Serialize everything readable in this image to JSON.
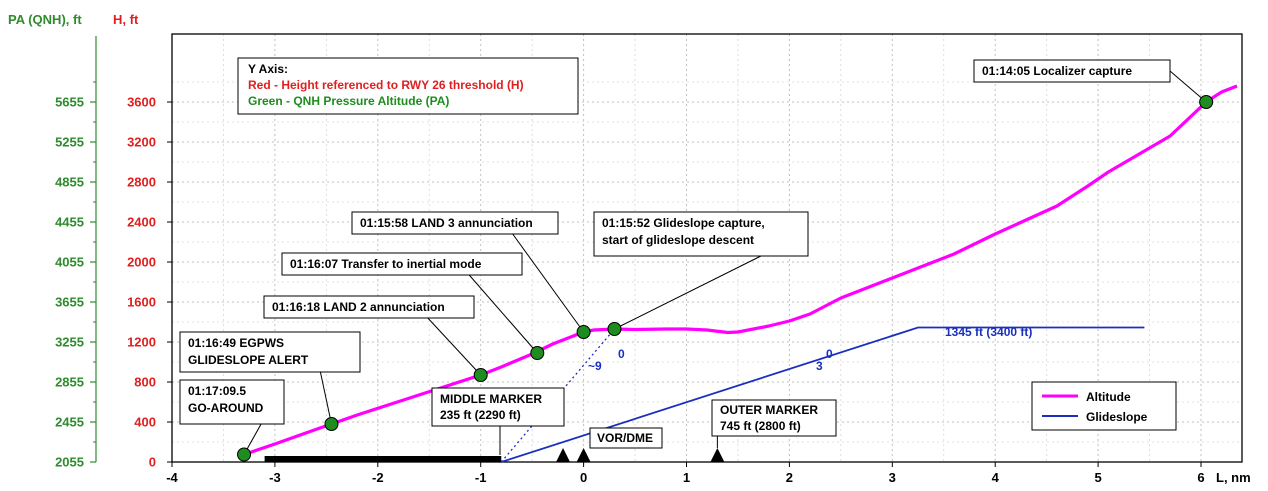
{
  "chart_data": {
    "type": "line",
    "xlabel": "L, nm",
    "ylabel_left_outer": "PA (QNH), ft",
    "ylabel_left_inner": "H, ft",
    "xlim": [
      -4,
      6.5
    ],
    "ylim": [
      0,
      3760
    ],
    "grid": true,
    "legend_position": "bottom-right",
    "x_ticks": [
      "-4",
      "-3",
      "-2",
      "-1",
      "0",
      "1",
      "2",
      "3",
      "4",
      "5",
      "6"
    ],
    "y_ticks_H": [
      "0",
      "400",
      "800",
      "1200",
      "1600",
      "2000",
      "2400",
      "2800",
      "3200",
      "3600"
    ],
    "y_ticks_PA": [
      "2055",
      "2455",
      "2855",
      "3255",
      "3655",
      "4055",
      "4455",
      "4855",
      "5255",
      "5655"
    ],
    "colors": {
      "altitude": "#ff00ff",
      "glideslope": "#1a2fbf",
      "h_axis": "#e02020",
      "pa_axis": "#2e8b2e",
      "marker": "#1e8c1e"
    },
    "series": [
      {
        "name": "Altitude",
        "x": [
          -3.3,
          -3.0,
          -2.7,
          -2.45,
          -2.2,
          -1.9,
          -1.6,
          -1.3,
          -1.0,
          -0.8,
          -0.5,
          -0.3,
          0.0,
          0.1,
          0.3,
          0.5,
          0.8,
          1.0,
          1.2,
          1.4,
          1.5,
          1.8,
          2.0,
          2.2,
          2.5,
          2.8,
          3.0,
          3.3,
          3.6,
          4.0,
          4.3,
          4.6,
          4.9,
          5.1,
          5.4,
          5.7,
          6.05,
          6.2,
          6.35
        ],
        "y": [
          75,
          180,
          290,
          380,
          470,
          570,
          670,
          770,
          870,
          950,
          1080,
          1180,
          1300,
          1320,
          1330,
          1325,
          1330,
          1330,
          1320,
          1295,
          1300,
          1360,
          1410,
          1480,
          1640,
          1760,
          1840,
          1960,
          2080,
          2280,
          2420,
          2560,
          2760,
          2900,
          3080,
          3260,
          3600,
          3700,
          3760
        ]
      },
      {
        "name": "Glideslope",
        "x": [
          -0.8,
          3.25,
          5.45
        ],
        "y": [
          0,
          1345,
          1345
        ]
      }
    ],
    "events": [
      {
        "x": -3.3,
        "y": 75,
        "label": [
          "01:17:09.5",
          "GO-AROUND"
        ]
      },
      {
        "x": -2.45,
        "y": 380,
        "label": [
          "01:16:49 EGPWS",
          "GLIDESLOPE ALERT"
        ]
      },
      {
        "x": -1.0,
        "y": 870,
        "label": [
          "01:16:18 LAND 2 annunciation"
        ]
      },
      {
        "x": -0.45,
        "y": 1090,
        "label": [
          "01:16:07 Transfer to inertial mode"
        ]
      },
      {
        "x": 0.0,
        "y": 1300,
        "label": [
          "01:15:58 LAND 3 annunciation"
        ]
      },
      {
        "x": 0.3,
        "y": 1330,
        "label": [
          "01:15:52 Glideslope capture,",
          "start of glideslope descent"
        ]
      },
      {
        "x": 6.05,
        "y": 3600,
        "label": [
          "01:14:05 Localizer capture"
        ]
      }
    ],
    "annotations": {
      "y_axis_title": "Y Axis:",
      "y_axis_red": "Red - Height referenced to RWY 26 threshold (H)",
      "y_axis_green": "Green - QNH Pressure Altitude (PA)",
      "middle_marker": [
        "MIDDLE MARKER",
        "235 ft (2290 ft)"
      ],
      "outer_marker": [
        "OUTER MARKER",
        "745 ft (2800 ft)"
      ],
      "vor_dme": "VOR/DME",
      "glideslope_level": "1345 ft (3400 ft)",
      "angle_9": "~9",
      "angle_3": "3",
      "degree": "0"
    },
    "runway": {
      "x_start": -3.1,
      "x_end": -0.8
    },
    "ground_markers_x": [
      -0.2,
      0.0,
      1.3
    ]
  }
}
